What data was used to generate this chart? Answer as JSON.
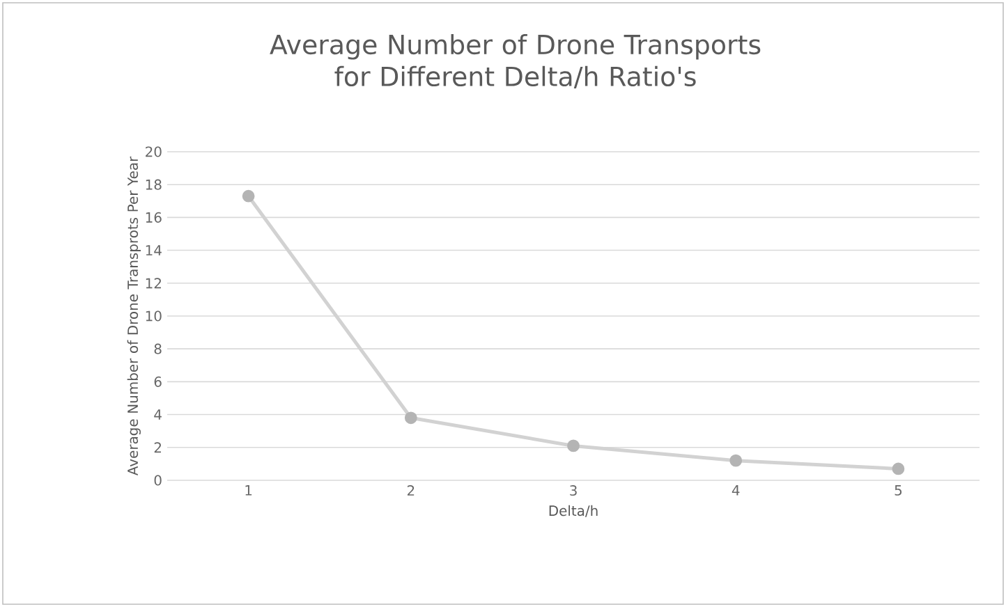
{
  "chart_data": {
    "type": "line",
    "title": "Average Number of Drone Transports for Different Delta/h Ratio's",
    "xlabel": "Delta/h",
    "ylabel": "Average Number of Drone Transprots Per Year",
    "categories": [
      "1",
      "2",
      "3",
      "4",
      "5"
    ],
    "series": [
      {
        "color": "#b4b4b4",
        "values": [
          17.3,
          3.8,
          2.1,
          1.2,
          0.7
        ]
      }
    ],
    "ylim": [
      0,
      20
    ],
    "yticks": [
      0,
      2,
      4,
      6,
      8,
      10,
      12,
      14,
      16,
      18,
      20
    ],
    "grid": "y",
    "marker": "circle",
    "line_style": "solid"
  }
}
